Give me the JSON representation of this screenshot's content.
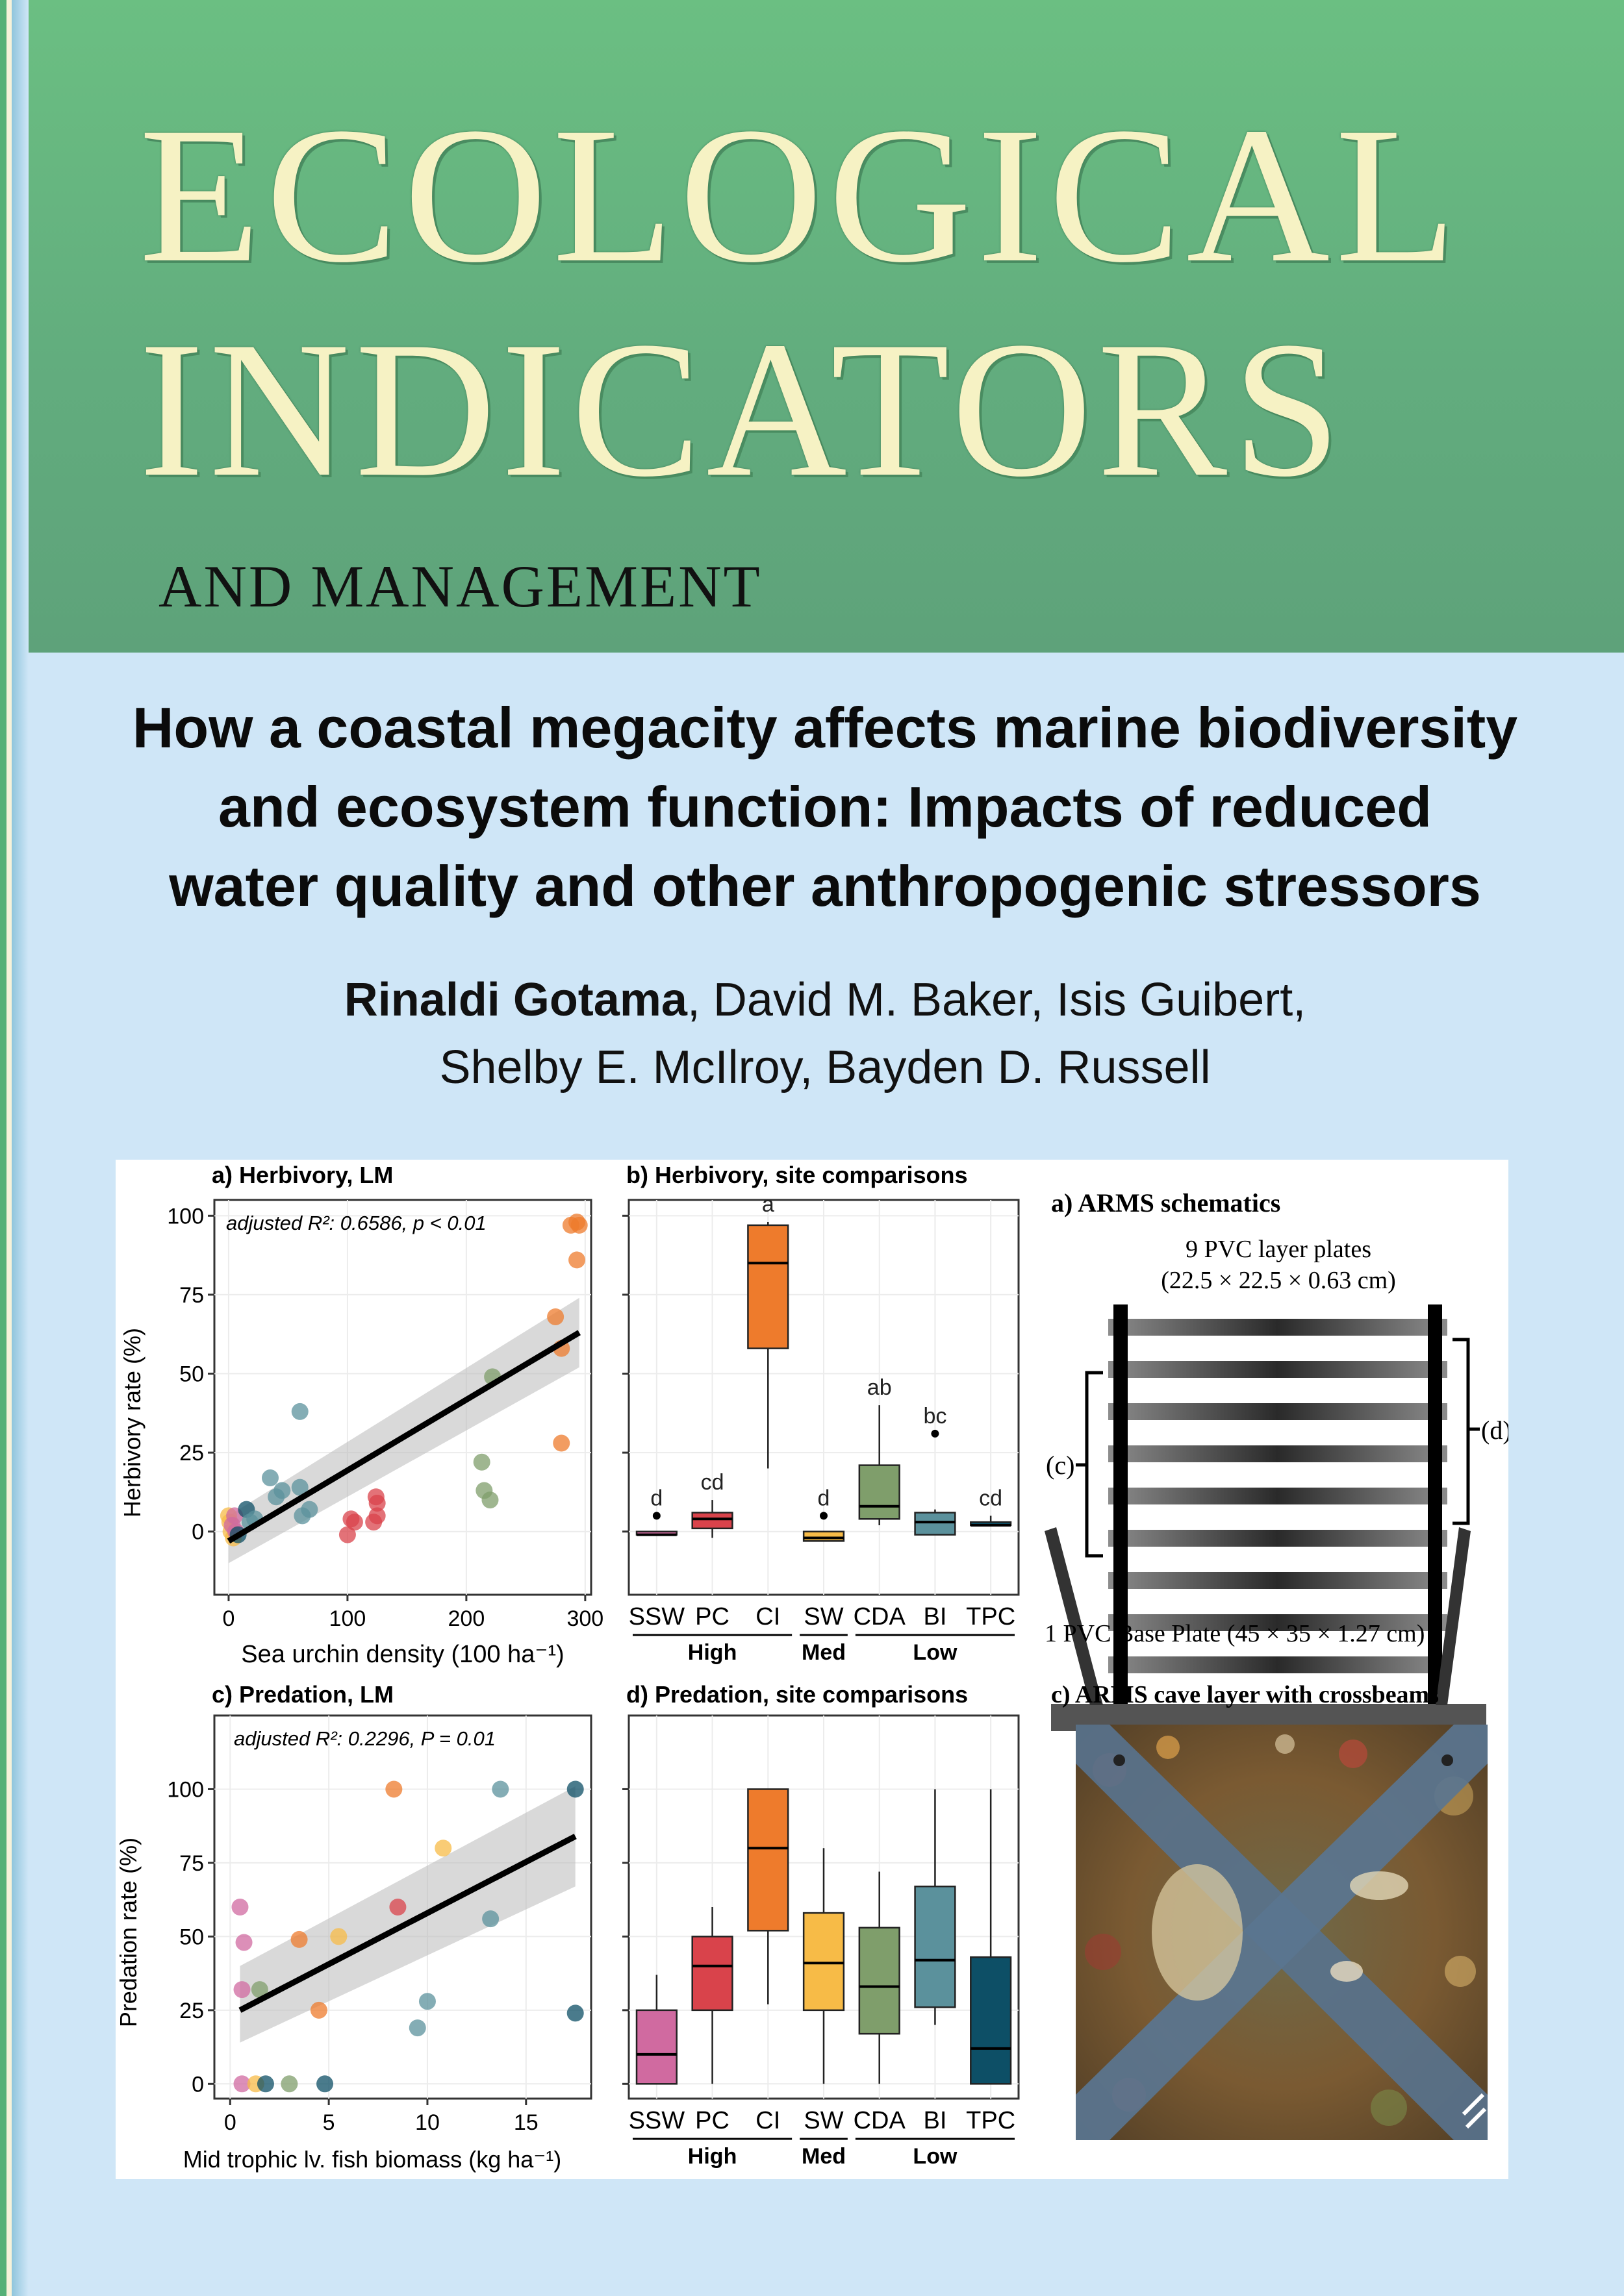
{
  "journal": {
    "line1": "ECOLOGICAL",
    "line2": "INDICATORS",
    "subtitle": "AND MANAGEMENT"
  },
  "article": {
    "title_lines": [
      "How a coastal megacity affects marine biodiversity",
      "and ecosystem function: Impacts of reduced",
      "water quality and other anthropogenic stressors"
    ],
    "first_author": "Rinaldi Gotama",
    "authors_rest_line1": ", David M. Baker, Isis Guibert,",
    "authors_line2": "Shelby E. McIlroy, Bayden D. Russell"
  },
  "colors": {
    "SSW": "#d06aa0",
    "PC": "#d9434b",
    "CI": "#ee7b2c",
    "SW": "#f7bb47",
    "CDA": "#7f9e6b",
    "BI": "#5b919c",
    "TPC": "#0d4f66",
    "header_green": "#62ad7e",
    "title_cream": "#f6f2c4",
    "background": "#cfe6f7"
  },
  "chart_data": [
    {
      "id": "a",
      "type": "scatter",
      "title": "a) Herbivory, LM",
      "annotation": "adjusted R²: 0.6586, p < 0.01",
      "xlabel": "Sea urchin density (100 ha⁻¹)",
      "ylabel": "Herbivory rate (%)",
      "xlim": [
        -12,
        305
      ],
      "ylim": [
        -20,
        105
      ],
      "xticks": [
        0,
        100,
        200,
        300
      ],
      "yticks": [
        0,
        25,
        50,
        75,
        100
      ],
      "fit": {
        "x": [
          0,
          295
        ],
        "y": [
          -3,
          63
        ],
        "ci_low": [
          -10,
          52
        ],
        "ci_high": [
          5,
          74
        ]
      },
      "points": [
        {
          "x": 0,
          "y": 5,
          "site": "SW"
        },
        {
          "x": 2,
          "y": 0,
          "site": "SW"
        },
        {
          "x": 4,
          "y": -2,
          "site": "SW"
        },
        {
          "x": 1,
          "y": 3,
          "site": "SW"
        },
        {
          "x": 3,
          "y": 2,
          "site": "SSW"
        },
        {
          "x": 5,
          "y": 5,
          "site": "SSW"
        },
        {
          "x": 6,
          "y": 0,
          "site": "SSW"
        },
        {
          "x": 8,
          "y": -1,
          "site": "TPC"
        },
        {
          "x": 15,
          "y": 7,
          "site": "TPC"
        },
        {
          "x": 18,
          "y": 3,
          "site": "BI"
        },
        {
          "x": 22,
          "y": 4,
          "site": "BI"
        },
        {
          "x": 35,
          "y": 17,
          "site": "BI"
        },
        {
          "x": 40,
          "y": 11,
          "site": "BI"
        },
        {
          "x": 45,
          "y": 13,
          "site": "BI"
        },
        {
          "x": 60,
          "y": 38,
          "site": "BI"
        },
        {
          "x": 60,
          "y": 14,
          "site": "BI"
        },
        {
          "x": 62,
          "y": 5,
          "site": "BI"
        },
        {
          "x": 68,
          "y": 7,
          "site": "BI"
        },
        {
          "x": 100,
          "y": -1,
          "site": "PC"
        },
        {
          "x": 103,
          "y": 4,
          "site": "PC"
        },
        {
          "x": 106,
          "y": 3,
          "site": "PC"
        },
        {
          "x": 122,
          "y": 3,
          "site": "PC"
        },
        {
          "x": 124,
          "y": 11,
          "site": "PC"
        },
        {
          "x": 125,
          "y": 5,
          "site": "PC"
        },
        {
          "x": 125,
          "y": 9,
          "site": "PC"
        },
        {
          "x": 213,
          "y": 22,
          "site": "CDA"
        },
        {
          "x": 215,
          "y": 13,
          "site": "CDA"
        },
        {
          "x": 220,
          "y": 10,
          "site": "CDA"
        },
        {
          "x": 222,
          "y": 49,
          "site": "CDA"
        },
        {
          "x": 275,
          "y": 68,
          "site": "CI"
        },
        {
          "x": 280,
          "y": 58,
          "site": "CI"
        },
        {
          "x": 280,
          "y": 28,
          "site": "CI"
        },
        {
          "x": 288,
          "y": 97,
          "site": "CI"
        },
        {
          "x": 293,
          "y": 98,
          "site": "CI"
        },
        {
          "x": 295,
          "y": 97,
          "site": "CI"
        },
        {
          "x": 293,
          "y": 86,
          "site": "CI"
        }
      ]
    },
    {
      "id": "b",
      "type": "box",
      "title": "b) Herbivory, site comparisons",
      "ylim": [
        -20,
        105
      ],
      "yticks": [
        0,
        25,
        50,
        75,
        100
      ],
      "categories": [
        "SSW",
        "PC",
        "CI",
        "SW",
        "CDA",
        "BI",
        "TPC"
      ],
      "groups": [
        {
          "label": "High",
          "from": 0,
          "to": 2
        },
        {
          "label": "Med",
          "from": 3,
          "to": 3
        },
        {
          "label": "Low",
          "from": 4,
          "to": 6
        }
      ],
      "boxes": [
        {
          "site": "SSW",
          "min": -1,
          "q1": -1,
          "median": -1,
          "q3": 0,
          "max": 0,
          "outliers": [
            5
          ],
          "letter": "d"
        },
        {
          "site": "PC",
          "min": -2,
          "q1": 1,
          "median": 4,
          "q3": 6,
          "max": 10,
          "outliers": [],
          "letter": "cd"
        },
        {
          "site": "CI",
          "min": 20,
          "q1": 58,
          "median": 85,
          "q3": 97,
          "max": 98,
          "outliers": [],
          "letter": "a"
        },
        {
          "site": "SW",
          "min": -3,
          "q1": -3,
          "median": -2,
          "q3": 0,
          "max": 0,
          "outliers": [
            5
          ],
          "letter": "d"
        },
        {
          "site": "CDA",
          "min": 2,
          "q1": 4,
          "median": 8,
          "q3": 21,
          "max": 40,
          "outliers": [],
          "letter": "ab"
        },
        {
          "site": "BI",
          "min": -1,
          "q1": -1,
          "median": 3,
          "q3": 6,
          "max": 7,
          "outliers": [
            31
          ],
          "letter": "bc"
        },
        {
          "site": "TPC",
          "min": 2,
          "q1": 2,
          "median": 2,
          "q3": 3,
          "max": 5,
          "outliers": [],
          "letter": "cd"
        }
      ]
    },
    {
      "id": "c",
      "type": "scatter",
      "title": "c) Predation, LM",
      "annotation": "adjusted R²: 0.2296, P = 0.01",
      "xlabel": "Mid trophic lv. fish biomass (kg ha⁻¹)",
      "ylabel": "Predation rate (%)",
      "xlim": [
        -0.8,
        18.3
      ],
      "ylim": [
        -5,
        125
      ],
      "xticks": [
        0,
        5,
        10,
        15
      ],
      "yticks": [
        0,
        25,
        50,
        75,
        100
      ],
      "fit": {
        "x": [
          0.5,
          17.5
        ],
        "y": [
          25,
          84
        ],
        "ci_low": [
          14,
          67
        ],
        "ci_high": [
          40,
          101
        ]
      },
      "points": [
        {
          "x": 0.5,
          "y": 60,
          "site": "SSW"
        },
        {
          "x": 0.7,
          "y": 48,
          "site": "SSW"
        },
        {
          "x": 0.6,
          "y": 32,
          "site": "SSW"
        },
        {
          "x": 0.6,
          "y": 0,
          "site": "SSW"
        },
        {
          "x": 1.3,
          "y": 0,
          "site": "SW"
        },
        {
          "x": 1.5,
          "y": 32,
          "site": "CDA"
        },
        {
          "x": 1.8,
          "y": 0,
          "site": "TPC"
        },
        {
          "x": 3.0,
          "y": 0,
          "site": "CDA"
        },
        {
          "x": 3.5,
          "y": 49,
          "site": "CI"
        },
        {
          "x": 4.5,
          "y": 25,
          "site": "CI"
        },
        {
          "x": 4.8,
          "y": 0,
          "site": "TPC"
        },
        {
          "x": 5.5,
          "y": 50,
          "site": "SW"
        },
        {
          "x": 8.3,
          "y": 100,
          "site": "CI"
        },
        {
          "x": 8.5,
          "y": 60,
          "site": "PC"
        },
        {
          "x": 9.5,
          "y": 19,
          "site": "BI"
        },
        {
          "x": 10.0,
          "y": 28,
          "site": "BI"
        },
        {
          "x": 10.8,
          "y": 80,
          "site": "SW"
        },
        {
          "x": 13.2,
          "y": 56,
          "site": "BI"
        },
        {
          "x": 13.7,
          "y": 100,
          "site": "BI"
        },
        {
          "x": 17.5,
          "y": 100,
          "site": "TPC"
        },
        {
          "x": 17.5,
          "y": 24,
          "site": "TPC"
        }
      ]
    },
    {
      "id": "d",
      "type": "box",
      "title": "d) Predation, site comparisons",
      "ylim": [
        -5,
        125
      ],
      "yticks": [
        0,
        25,
        50,
        75,
        100
      ],
      "categories": [
        "SSW",
        "PC",
        "CI",
        "SW",
        "CDA",
        "BI",
        "TPC"
      ],
      "groups": [
        {
          "label": "High",
          "from": 0,
          "to": 2
        },
        {
          "label": "Med",
          "from": 3,
          "to": 3
        },
        {
          "label": "Low",
          "from": 4,
          "to": 6
        }
      ],
      "boxes": [
        {
          "site": "SSW",
          "min": 0,
          "q1": 0,
          "median": 10,
          "q3": 25,
          "max": 37,
          "outliers": []
        },
        {
          "site": "PC",
          "min": 0,
          "q1": 25,
          "median": 40,
          "q3": 50,
          "max": 60,
          "outliers": []
        },
        {
          "site": "CI",
          "min": 27,
          "q1": 52,
          "median": 80,
          "q3": 100,
          "max": 100,
          "outliers": []
        },
        {
          "site": "SW",
          "min": 0,
          "q1": 25,
          "median": 41,
          "q3": 58,
          "max": 80,
          "outliers": []
        },
        {
          "site": "CDA",
          "min": 0,
          "q1": 17,
          "median": 33,
          "q3": 53,
          "max": 72,
          "outliers": []
        },
        {
          "site": "BI",
          "min": 20,
          "q1": 26,
          "median": 42,
          "q3": 67,
          "max": 100,
          "outliers": []
        },
        {
          "site": "TPC",
          "min": 0,
          "q1": 0,
          "median": 12,
          "q3": 43,
          "max": 100,
          "outliers": []
        }
      ]
    }
  ],
  "arms": {
    "title_a": "a) ARMS schematics",
    "plates_label_1": "9 PVC layer plates",
    "plates_label_2": "(22.5 × 22.5 × 0.63 cm)",
    "bracket_c": "(c)",
    "bracket_d": "(d)",
    "base_label": "1 PVC Base Plate (45 × 35 × 1.27 cm)",
    "title_c": "c) ARMS cave layer with crossbeams"
  }
}
